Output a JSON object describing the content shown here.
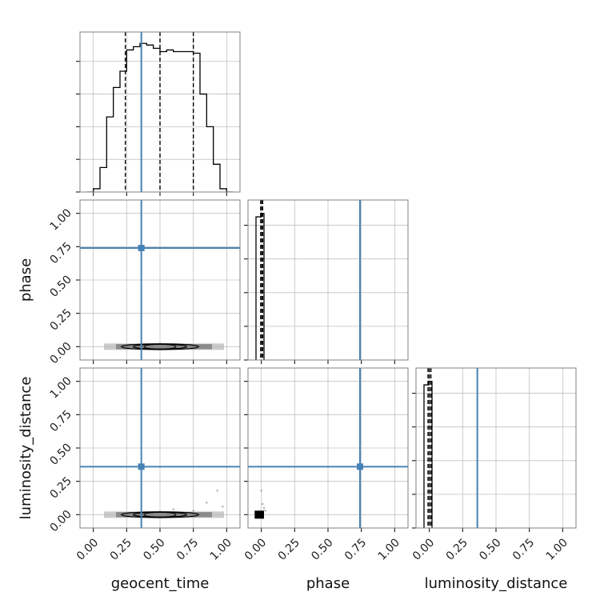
{
  "chart_data": {
    "type": "corner",
    "colors": {
      "truth": "#4682b4",
      "hist": "#000000",
      "grid": "#c0c0c0",
      "frame": "#808080",
      "density": "#000000"
    },
    "parameters": [
      "geocent_time",
      "phase",
      "luminosity_distance"
    ],
    "truths": {
      "geocent_time": 0.36,
      "phase": 0.74,
      "luminosity_distance": 0.36
    },
    "range": [
      -0.1,
      1.1
    ],
    "ticks": [
      0.0,
      0.25,
      0.5,
      0.75,
      1.0
    ],
    "tick_labels": [
      "0.00",
      "0.25",
      "0.50",
      "0.75",
      "1.00"
    ],
    "axis_labels": {
      "x": [
        "geocent_time",
        "phase",
        "luminosity_distance"
      ],
      "y": [
        "phase",
        "luminosity_distance"
      ]
    },
    "grid": true,
    "diagonal": [
      {
        "name": "geocent_time",
        "bin_edges": [
          -0.05,
          0.0,
          0.05,
          0.1,
          0.15,
          0.2,
          0.25,
          0.3,
          0.35,
          0.4,
          0.45,
          0.5,
          0.55,
          0.6,
          0.65,
          0.7,
          0.75,
          0.8,
          0.85,
          0.9,
          0.95,
          1.0,
          1.05
        ],
        "counts": [
          0.0,
          0.02,
          0.15,
          0.46,
          0.64,
          0.74,
          0.87,
          0.89,
          0.91,
          0.9,
          0.88,
          0.86,
          0.87,
          0.86,
          0.86,
          0.86,
          0.85,
          0.6,
          0.4,
          0.17,
          0.02,
          0.0
        ],
        "ymax": 0.98,
        "quantiles": [
          0.24,
          0.5,
          0.75
        ]
      },
      {
        "name": "phase",
        "bin_edges": [
          -0.04,
          0.0,
          0.02
        ],
        "counts": [
          0.85,
          0.87
        ],
        "ymax": 0.95,
        "quantiles": [
          -0.005,
          0.005,
          0.01
        ]
      },
      {
        "name": "luminosity_distance",
        "bin_edges": [
          -0.04,
          -0.005,
          0.02
        ],
        "counts": [
          0.85,
          0.87
        ],
        "ymax": 0.95,
        "quantiles": [
          -0.01,
          0.0,
          0.012
        ]
      }
    ],
    "density_blobs": [
      {
        "row": 1,
        "col": 0,
        "x_range": [
          0.08,
          0.98
        ],
        "y_center": 0.0,
        "y_spread": 0.012,
        "contours": [
          [
            0.29,
            0.022
          ],
          [
            0.2,
            0.014
          ],
          [
            0.12,
            0.008
          ]
        ],
        "contour_center_x": 0.5
      },
      {
        "row": 2,
        "col": 0,
        "x_range": [
          0.08,
          0.98
        ],
        "y_center": 0.0,
        "y_spread": 0.012,
        "contours": [
          [
            0.29,
            0.022
          ],
          [
            0.2,
            0.014
          ],
          [
            0.12,
            0.008
          ]
        ],
        "contour_center_x": 0.5,
        "scatter": [
          [
            0.93,
            0.18
          ],
          [
            0.85,
            0.09
          ],
          [
            0.97,
            0.06
          ],
          [
            0.6,
            0.04
          ],
          [
            0.75,
            0.03
          ]
        ]
      },
      {
        "row": 2,
        "col": 1,
        "x_range": [
          -0.05,
          0.02
        ],
        "y_center": 0.0,
        "y_spread": 0.015,
        "contours": [],
        "contour_center_x": -0.015,
        "scatter": [
          [
            0.0,
            0.18
          ],
          [
            0.01,
            0.08
          ],
          [
            0.03,
            0.03
          ],
          [
            0.02,
            0.05
          ]
        ]
      }
    ]
  }
}
